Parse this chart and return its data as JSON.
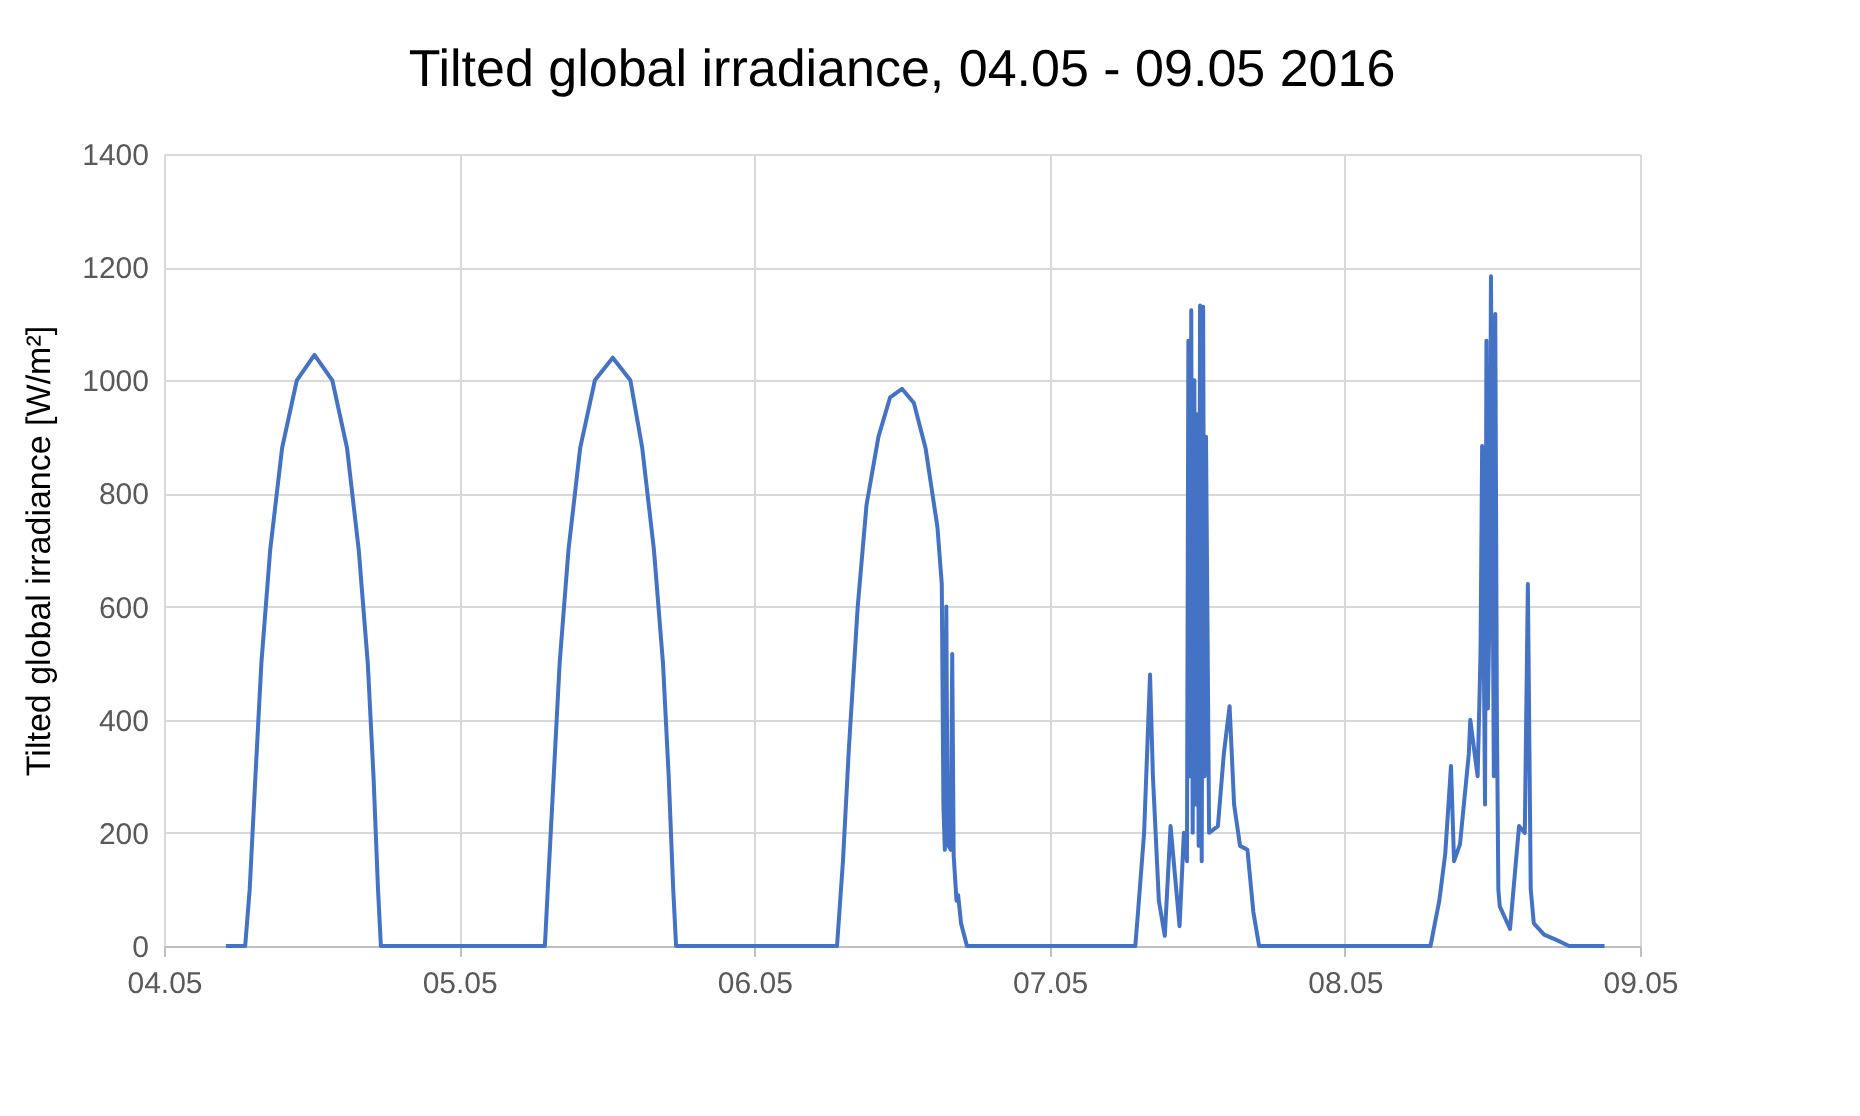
{
  "chart_data": {
    "type": "line",
    "title": "Tilted global irradiance, 04.05 - 09.05 2016",
    "ylabel": "Tilted global irradiance [W/m²]",
    "x": [
      "2016-05-04T05:02",
      "2016-05-04T06:36",
      "2016-05-04T06:58",
      "2016-05-04T07:26",
      "2016-05-04T07:55",
      "2016-05-04T08:38",
      "2016-05-04T09:36",
      "2016-05-04T10:48",
      "2016-05-04T12:14",
      "2016-05-04T13:41",
      "2016-05-04T14:53",
      "2016-05-04T15:50",
      "2016-05-04T16:34",
      "2016-05-04T17:02",
      "2016-05-04T17:24",
      "2016-05-04T17:38",
      "2016-05-05T06:58",
      "2016-05-05T07:12",
      "2016-05-05T07:41",
      "2016-05-05T08:10",
      "2016-05-05T08:53",
      "2016-05-05T09:50",
      "2016-05-05T11:02",
      "2016-05-05T12:29",
      "2016-05-05T13:55",
      "2016-05-05T14:53",
      "2016-05-05T15:50",
      "2016-05-05T16:34",
      "2016-05-05T17:02",
      "2016-05-05T17:24",
      "2016-05-05T17:38",
      "2016-05-06T06:43",
      "2016-05-06T07:12",
      "2016-05-06T07:41",
      "2016-05-06T08:24",
      "2016-05-06T09:07",
      "2016-05-06T10:05",
      "2016-05-06T11:02",
      "2016-05-06T12:00",
      "2016-05-06T12:58",
      "2016-05-06T13:55",
      "2016-05-06T14:53",
      "2016-05-06T15:14",
      "2016-05-06T15:22",
      "2016-05-06T15:29",
      "2016-05-06T15:36",
      "2016-05-06T15:43",
      "2016-05-06T15:58",
      "2016-05-06T16:05",
      "2016-05-06T16:12",
      "2016-05-06T16:26",
      "2016-05-06T16:34",
      "2016-05-06T16:48",
      "2016-05-06T17:17",
      "2016-05-07T06:58",
      "2016-05-07T07:12",
      "2016-05-07T07:41",
      "2016-05-07T08:10",
      "2016-05-07T08:24",
      "2016-05-07T08:53",
      "2016-05-07T09:22",
      "2016-05-07T09:50",
      "2016-05-07T10:34",
      "2016-05-07T10:55",
      "2016-05-07T11:10",
      "2016-05-07T11:17",
      "2016-05-07T11:24",
      "2016-05-07T11:31",
      "2016-05-07T11:38",
      "2016-05-07T11:46",
      "2016-05-07T11:53",
      "2016-05-07T12:00",
      "2016-05-07T12:07",
      "2016-05-07T12:14",
      "2016-05-07T12:22",
      "2016-05-07T12:29",
      "2016-05-07T12:36",
      "2016-05-07T12:43",
      "2016-05-07T12:58",
      "2016-05-07T13:41",
      "2016-05-07T14:10",
      "2016-05-07T14:38",
      "2016-05-07T15:00",
      "2016-05-07T15:29",
      "2016-05-07T16:05",
      "2016-05-07T16:34",
      "2016-05-07T17:02",
      "2016-05-08T06:58",
      "2016-05-08T07:41",
      "2016-05-08T08:10",
      "2016-05-08T08:38",
      "2016-05-08T08:53",
      "2016-05-08T09:22",
      "2016-05-08T10:05",
      "2016-05-08T10:12",
      "2016-05-08T10:48",
      "2016-05-08T11:02",
      "2016-05-08T11:10",
      "2016-05-08T11:24",
      "2016-05-08T11:31",
      "2016-05-08T11:38",
      "2016-05-08T11:46",
      "2016-05-08T11:53",
      "2016-05-08T12:07",
      "2016-05-08T12:14",
      "2016-05-08T12:22",
      "2016-05-08T12:29",
      "2016-05-08T12:36",
      "2016-05-08T13:26",
      "2016-05-08T14:10",
      "2016-05-08T14:38",
      "2016-05-08T14:53",
      "2016-05-08T15:07",
      "2016-05-08T15:22",
      "2016-05-08T16:12",
      "2016-05-08T17:17",
      "2016-05-08T18:14",
      "2016-05-08T21:07"
    ],
    "series": [
      {
        "color": "#4472c4",
        "values": [
          0,
          0,
          100,
          300,
          500,
          700,
          880,
          1000,
          1045,
          1000,
          880,
          700,
          500,
          300,
          100,
          0,
          0,
          100,
          300,
          500,
          700,
          880,
          1000,
          1040,
          1000,
          880,
          700,
          500,
          300,
          100,
          0,
          0,
          150,
          350,
          600,
          780,
          900,
          970,
          985,
          960,
          880,
          740,
          640,
          250,
          170,
          600,
          180,
          170,
          516,
          160,
          80,
          90,
          40,
          0,
          0,
          63,
          200,
          480,
          300,
          80,
          18,
          212,
          35,
          200,
          150,
          1070,
          300,
          1124,
          200,
          1000,
          250,
          940,
          177,
          1132,
          150,
          1130,
          300,
          900,
          200,
          212,
          340,
          424,
          250,
          177,
          170,
          60,
          0,
          0,
          80,
          163,
          318,
          150,
          180,
          340,
          400,
          300,
          516,
          884,
          250,
          1070,
          420,
          600,
          1184,
          300,
          1117,
          400,
          100,
          70,
          30,
          212,
          200,
          640,
          100,
          40,
          20,
          10,
          0,
          0
        ]
      }
    ],
    "xlim": [
      "2016-05-04",
      "2016-05-09"
    ],
    "xticks": [
      {
        "value": "2016-05-04",
        "label": "04.05"
      },
      {
        "value": "2016-05-05",
        "label": "05.05"
      },
      {
        "value": "2016-05-06",
        "label": "06.05"
      },
      {
        "value": "2016-05-07",
        "label": "07.05"
      },
      {
        "value": "2016-05-08",
        "label": "08.05"
      },
      {
        "value": "2016-05-09",
        "label": "09.05"
      }
    ],
    "ylim": [
      0,
      1400
    ],
    "yticks": [
      0,
      200,
      400,
      600,
      800,
      1000,
      1200,
      1400
    ],
    "grid": true,
    "marker": "none",
    "line_style": "solid"
  }
}
